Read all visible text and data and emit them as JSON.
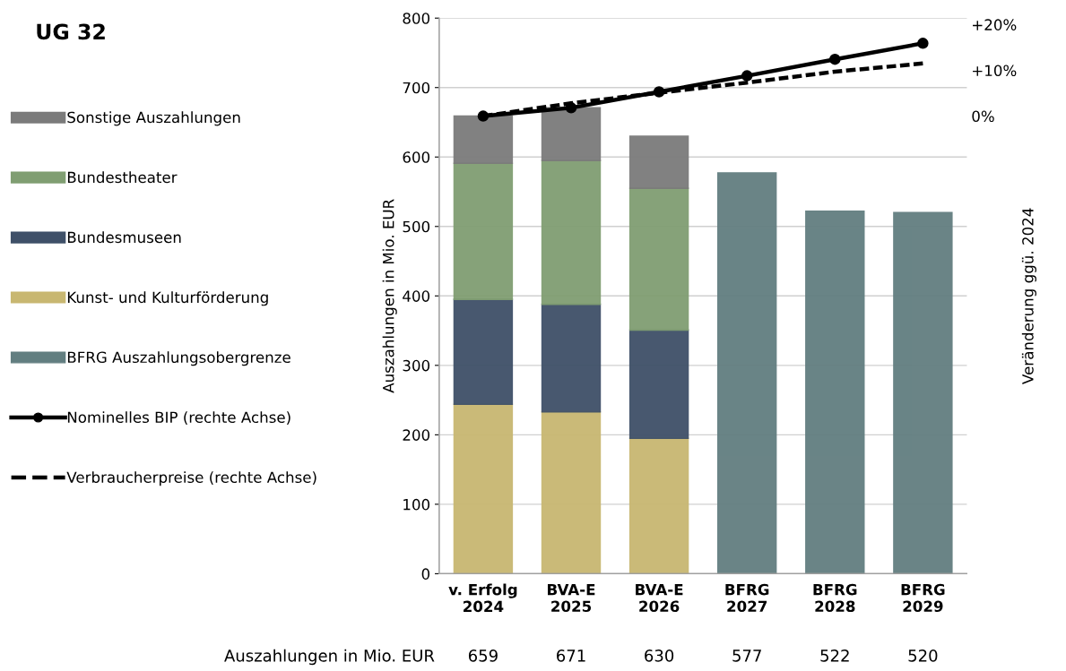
{
  "chart_data": {
    "type": "bar",
    "title": "UG 32",
    "ylabel": "Auszahlungen in Mio. EUR",
    "y2label": "Veränderung ggü. 2024",
    "categories": [
      "v. Erfolg\n2024",
      "BVA-E\n2025",
      "BVA-E\n2026",
      "BFRG\n2027",
      "BFRG\n2028",
      "BFRG\n2029"
    ],
    "stacked": true,
    "ylim": [
      0,
      800
    ],
    "yticks": [
      0,
      100,
      200,
      300,
      400,
      500,
      600,
      700,
      800
    ],
    "y2lim": [
      -100,
      21.4
    ],
    "y2ticks": [
      {
        "value": 0,
        "label": "0%"
      },
      {
        "value": 10,
        "label": "+10%"
      },
      {
        "value": 20,
        "label": "+20%"
      }
    ],
    "grid": "y",
    "legend": "left",
    "series": [
      {
        "name": "Kunst- und Kulturförderung",
        "color": "#c8b771",
        "values": [
          244,
          233,
          195,
          null,
          null,
          null
        ]
      },
      {
        "name": "Bundesmuseen",
        "color": "#3f5068",
        "values": [
          151,
          155,
          156,
          null,
          null,
          null
        ]
      },
      {
        "name": "Bundestheater",
        "color": "#809e72",
        "values": [
          196,
          207,
          204,
          null,
          null,
          null
        ]
      },
      {
        "name": "Sonstige Auszahlungen",
        "color": "#7b7b7b",
        "values": [
          68,
          76,
          75,
          null,
          null,
          null
        ]
      },
      {
        "name": "BFRG Auszahlungsobergrenze",
        "color": "#627e80",
        "values": [
          null,
          null,
          null,
          577,
          522,
          520
        ]
      },
      {
        "name": "Nominelles BIP (rechte Achse)",
        "type": "line",
        "axis": "y2",
        "color": "#000000",
        "marker": "circle",
        "line_style": "solid",
        "values": [
          0,
          1.8,
          5.3,
          8.8,
          12.4,
          15.9
        ]
      },
      {
        "name": "Verbraucherpreise (rechte Achse)",
        "type": "line",
        "axis": "y2",
        "color": "#000000",
        "marker": "none",
        "line_style": "dashed",
        "values": [
          0,
          2.8,
          5.1,
          7.3,
          9.7,
          11.5
        ]
      }
    ],
    "annotations": [
      "Auszahlungen in Mio. EUR",
      "659",
      "671",
      "630",
      "577",
      "522",
      "520"
    ]
  }
}
